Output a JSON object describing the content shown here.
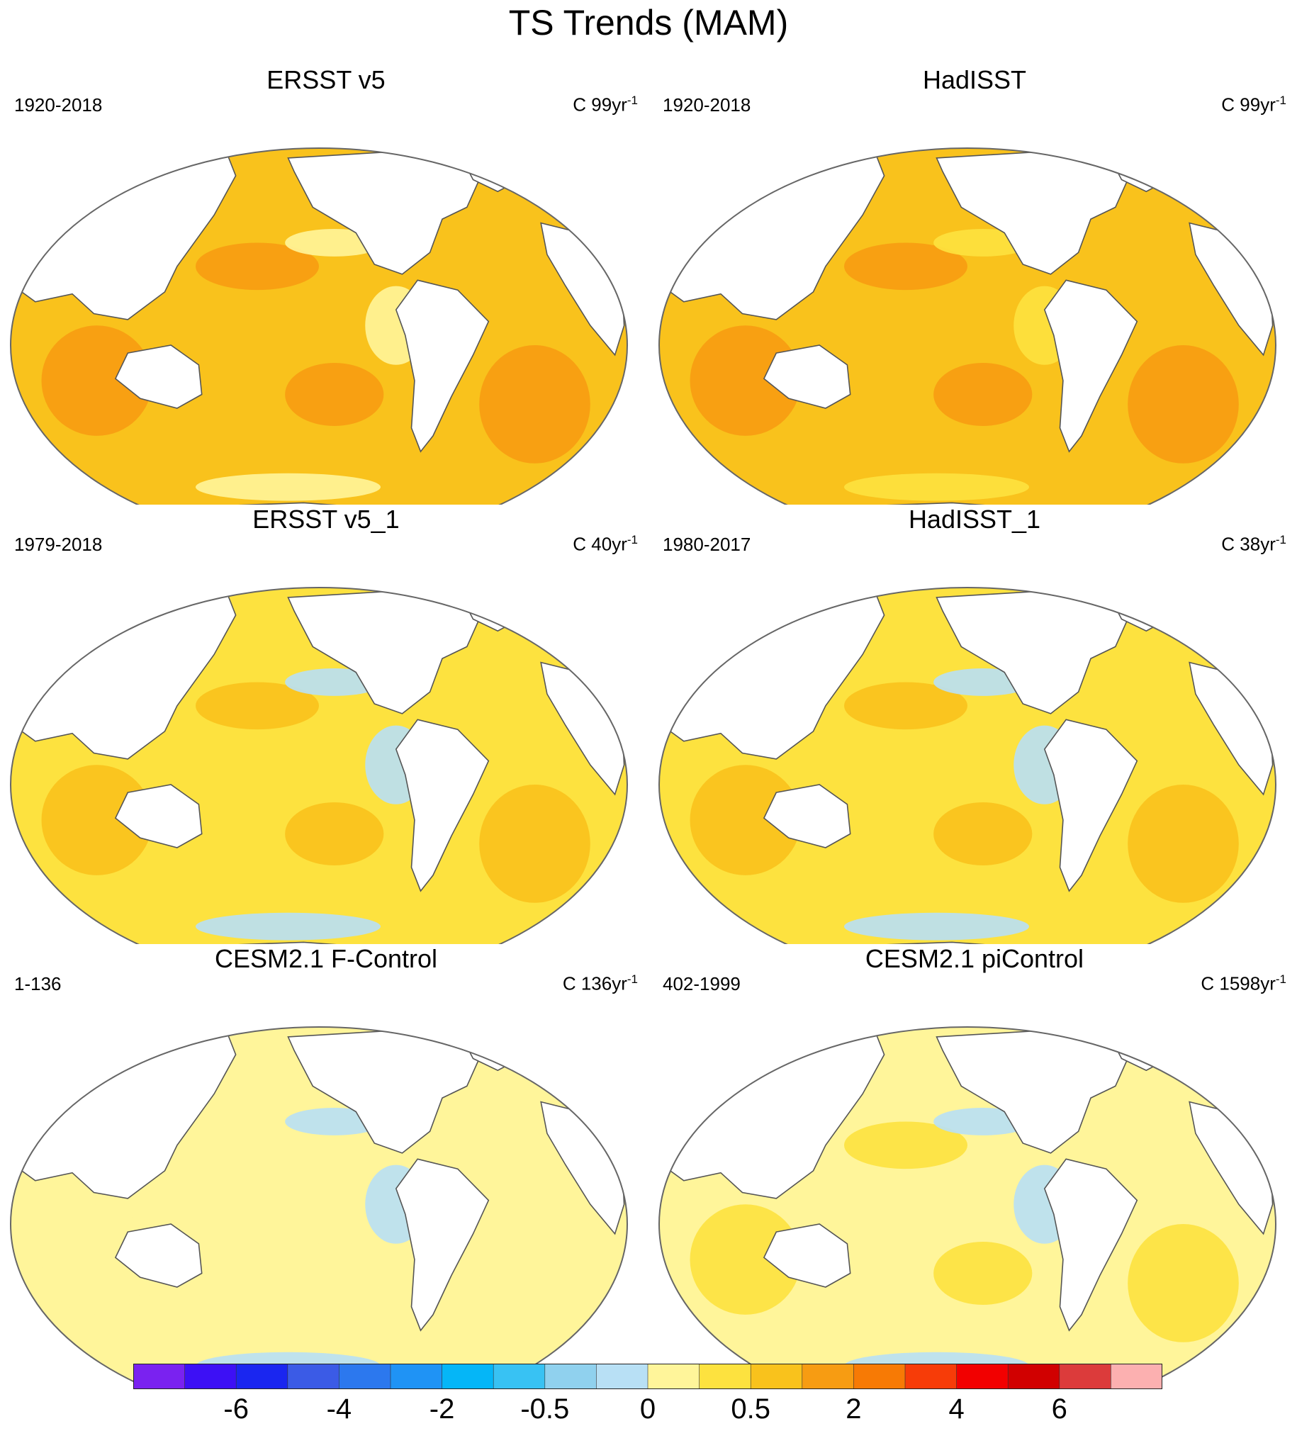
{
  "figure": {
    "title": "TS Trends (MAM)"
  },
  "panels": [
    {
      "id": "ersst-v5",
      "title": "ERSST v5",
      "period": "1920-2018",
      "units": "C 99yr",
      "units_exp": "-1",
      "fields": {
        "base": "#f9c21c",
        "warm_patches": "#f79c12",
        "cool_patches": "#fff59a"
      }
    },
    {
      "id": "hadisst",
      "title": "HadISST",
      "period": "1920-2018",
      "units": "C 99yr",
      "units_exp": "-1",
      "fields": {
        "base": "#f9c21c",
        "warm_patches": "#f79c12",
        "cool_patches": "#fde23f"
      }
    },
    {
      "id": "ersst-v5-1",
      "title": "ERSST v5_1",
      "period": "1979-2018",
      "units": "C 40yr",
      "units_exp": "-1",
      "fields": {
        "base": "#fde23f",
        "warm_patches": "#f9c21c",
        "cool_patches": "#b8e0f5"
      }
    },
    {
      "id": "hadisst-1",
      "title": "HadISST_1",
      "period": "1980-2017",
      "units": "C 38yr",
      "units_exp": "-1",
      "fields": {
        "base": "#fde23f",
        "warm_patches": "#f9c21c",
        "cool_patches": "#b8e0f5"
      }
    },
    {
      "id": "cesm21-f-control",
      "title": "CESM2.1 F-Control",
      "period": "1-136",
      "units": "C 136yr",
      "units_exp": "-1",
      "fields": {
        "base": "#fff59a",
        "warm_patches": "#fff59a",
        "cool_patches": "#b8e0f5"
      }
    },
    {
      "id": "cesm21-picontrol",
      "title": "CESM2.1 piControl",
      "period": "402-1999",
      "units": "C 1598yr",
      "units_exp": "-1",
      "fields": {
        "base": "#fff59a",
        "warm_patches": "#fde23f",
        "cool_patches": "#b8e0f5"
      }
    }
  ],
  "colorbar": {
    "colors": [
      "#7a22f0",
      "#3d10f5",
      "#1a26f0",
      "#3b5be6",
      "#2c78ee",
      "#1f93f5",
      "#05b6f7",
      "#38c2f3",
      "#90d1ee",
      "#b8e0f5",
      "#fff59a",
      "#fde23f",
      "#f9c21c",
      "#f79c12",
      "#f77a05",
      "#f73c08",
      "#f20000",
      "#d10000",
      "#dc3b3b",
      "#fcb0b0"
    ],
    "labels": [
      "-6",
      "-4",
      "-2",
      "-0.5",
      "0",
      "0.5",
      "2",
      "4",
      "6"
    ],
    "land_color": "#ffffff",
    "coast_color": "#555555"
  }
}
